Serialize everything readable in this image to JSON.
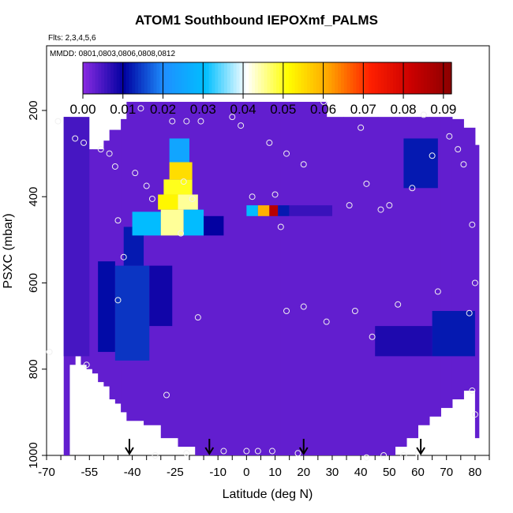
{
  "chart_data": {
    "type": "heatmap",
    "title": "ATOM1 Southbound IEPOXmf_PALMS",
    "subtitle_flights": "Flts: 2,3,4,5,6",
    "subtitle_dates": "MMDD: 0801,0803,0806,0808,0812",
    "xlabel": "Latitude (deg N)",
    "ylabel": "PSXC (mbar)",
    "xlim": [
      -70,
      85
    ],
    "ylim": [
      1000,
      50
    ],
    "x_ticks": [
      -70,
      -55,
      -40,
      -25,
      -10,
      0,
      10,
      20,
      30,
      40,
      50,
      60,
      70,
      80
    ],
    "y_ticks": [
      200,
      400,
      600,
      800,
      1000
    ],
    "colorbar": {
      "min": 0.0,
      "max": 0.092,
      "ticks": [
        "0.00",
        "0.01",
        "0.02",
        "0.03",
        "0.04",
        "0.05",
        "0.06",
        "0.07",
        "0.08",
        "0.09"
      ],
      "stops": [
        "#8a2be2",
        "#0000a0",
        "#1e90ff",
        "#00bfff",
        "#ffffff",
        "#ffff00",
        "#ffa500",
        "#ff2000",
        "#cc0000",
        "#8b0000"
      ]
    },
    "background_value": 0.003,
    "regions": [
      {
        "lat": [
          -64,
          -55
        ],
        "p": [
          215,
          770
        ],
        "value": 0.005
      },
      {
        "lat": [
          -52,
          -46
        ],
        "p": [
          550,
          760
        ],
        "value": 0.011
      },
      {
        "lat": [
          -46,
          -34
        ],
        "p": [
          560,
          780
        ],
        "value": 0.014
      },
      {
        "lat": [
          -34,
          -26
        ],
        "p": [
          560,
          700
        ],
        "value": 0.009
      },
      {
        "lat": [
          -43,
          -36
        ],
        "p": [
          470,
          560
        ],
        "value": 0.012
      },
      {
        "lat": [
          -40,
          -30
        ],
        "p": [
          435,
          490
        ],
        "value": 0.03
      },
      {
        "lat": [
          -30,
          -22
        ],
        "p": [
          430,
          490
        ],
        "value": 0.045
      },
      {
        "lat": [
          -22,
          -15
        ],
        "p": [
          430,
          490
        ],
        "value": 0.03
      },
      {
        "lat": [
          -15,
          -8
        ],
        "p": [
          445,
          490
        ],
        "value": 0.01
      },
      {
        "lat": [
          -31,
          -24
        ],
        "p": [
          395,
          430
        ],
        "value": 0.052
      },
      {
        "lat": [
          -24,
          -17
        ],
        "p": [
          395,
          430
        ],
        "value": 0.045
      },
      {
        "lat": [
          -29,
          -19
        ],
        "p": [
          360,
          395
        ],
        "value": 0.05
      },
      {
        "lat": [
          -27,
          -19
        ],
        "p": [
          320,
          360
        ],
        "value": 0.055
      },
      {
        "lat": [
          -27,
          -20
        ],
        "p": [
          265,
          320
        ],
        "value": 0.025
      },
      {
        "lat": [
          0,
          4
        ],
        "p": [
          420,
          445
        ],
        "value": 0.03
      },
      {
        "lat": [
          4,
          8
        ],
        "p": [
          420,
          445
        ],
        "value": 0.06
      },
      {
        "lat": [
          8,
          11
        ],
        "p": [
          420,
          445
        ],
        "value": 0.085
      },
      {
        "lat": [
          11,
          15
        ],
        "p": [
          420,
          445
        ],
        "value": 0.012
      },
      {
        "lat": [
          15,
          30
        ],
        "p": [
          420,
          445
        ],
        "value": 0.006
      },
      {
        "lat": [
          55,
          67
        ],
        "p": [
          265,
          380
        ],
        "value": 0.012
      },
      {
        "lat": [
          65,
          80
        ],
        "p": [
          665,
          770
        ],
        "value": 0.012
      },
      {
        "lat": [
          45,
          65
        ],
        "p": [
          700,
          770
        ],
        "value": 0.008
      }
    ],
    "observations": [
      {
        "lat": -66,
        "p": 225
      },
      {
        "lat": -60,
        "p": 265
      },
      {
        "lat": -57,
        "p": 275
      },
      {
        "lat": -51,
        "p": 290
      },
      {
        "lat": -48,
        "p": 300
      },
      {
        "lat": -46,
        "p": 330
      },
      {
        "lat": -37,
        "p": 195
      },
      {
        "lat": -35,
        "p": 375
      },
      {
        "lat": -33,
        "p": 405
      },
      {
        "lat": -26,
        "p": 225
      },
      {
        "lat": -21,
        "p": 225
      },
      {
        "lat": -16,
        "p": 225
      },
      {
        "lat": -22,
        "p": 365
      },
      {
        "lat": -19,
        "p": 405
      },
      {
        "lat": -39,
        "p": 345
      },
      {
        "lat": -23,
        "p": 485
      },
      {
        "lat": -45,
        "p": 455
      },
      {
        "lat": -43,
        "p": 540
      },
      {
        "lat": -45,
        "p": 640
      },
      {
        "lat": -17,
        "p": 680
      },
      {
        "lat": -5,
        "p": 215
      },
      {
        "lat": -2,
        "p": 235
      },
      {
        "lat": 8,
        "p": 275
      },
      {
        "lat": 14,
        "p": 300
      },
      {
        "lat": 27,
        "p": 180
      },
      {
        "lat": 20,
        "p": 325
      },
      {
        "lat": 10,
        "p": 395
      },
      {
        "lat": 12,
        "p": 470
      },
      {
        "lat": 2,
        "p": 400
      },
      {
        "lat": 14,
        "p": 665
      },
      {
        "lat": 20,
        "p": 655
      },
      {
        "lat": 28,
        "p": 690
      },
      {
        "lat": 36,
        "p": 420
      },
      {
        "lat": 38,
        "p": 665
      },
      {
        "lat": 40,
        "p": 240
      },
      {
        "lat": 42,
        "p": 370
      },
      {
        "lat": 47,
        "p": 430
      },
      {
        "lat": 50,
        "p": 420
      },
      {
        "lat": 53,
        "p": 650
      },
      {
        "lat": 44,
        "p": 725
      },
      {
        "lat": 58,
        "p": 380
      },
      {
        "lat": 62,
        "p": 210
      },
      {
        "lat": 65,
        "p": 305
      },
      {
        "lat": 71,
        "p": 260
      },
      {
        "lat": 74,
        "p": 290
      },
      {
        "lat": 76,
        "p": 325
      },
      {
        "lat": 67,
        "p": 620
      },
      {
        "lat": 79,
        "p": 465
      },
      {
        "lat": 80,
        "p": 600
      },
      {
        "lat": 78,
        "p": 670
      },
      {
        "lat": 79,
        "p": 850
      },
      {
        "lat": 80,
        "p": 905
      },
      {
        "lat": -69,
        "p": 760
      },
      {
        "lat": -56,
        "p": 790
      },
      {
        "lat": -28,
        "p": 860
      },
      {
        "lat": -32,
        "p": 1000
      },
      {
        "lat": -21,
        "p": 995
      },
      {
        "lat": -8,
        "p": 990
      },
      {
        "lat": 0,
        "p": 990
      },
      {
        "lat": 4,
        "p": 990
      },
      {
        "lat": 9,
        "p": 990
      },
      {
        "lat": 18,
        "p": 995
      },
      {
        "lat": 42,
        "p": 1005
      },
      {
        "lat": 48,
        "p": 1000
      },
      {
        "lat": 55,
        "p": 1000
      },
      {
        "lat": 60,
        "p": 995
      }
    ],
    "arrow_latitudes": [
      -41,
      -13,
      20,
      61
    ]
  }
}
